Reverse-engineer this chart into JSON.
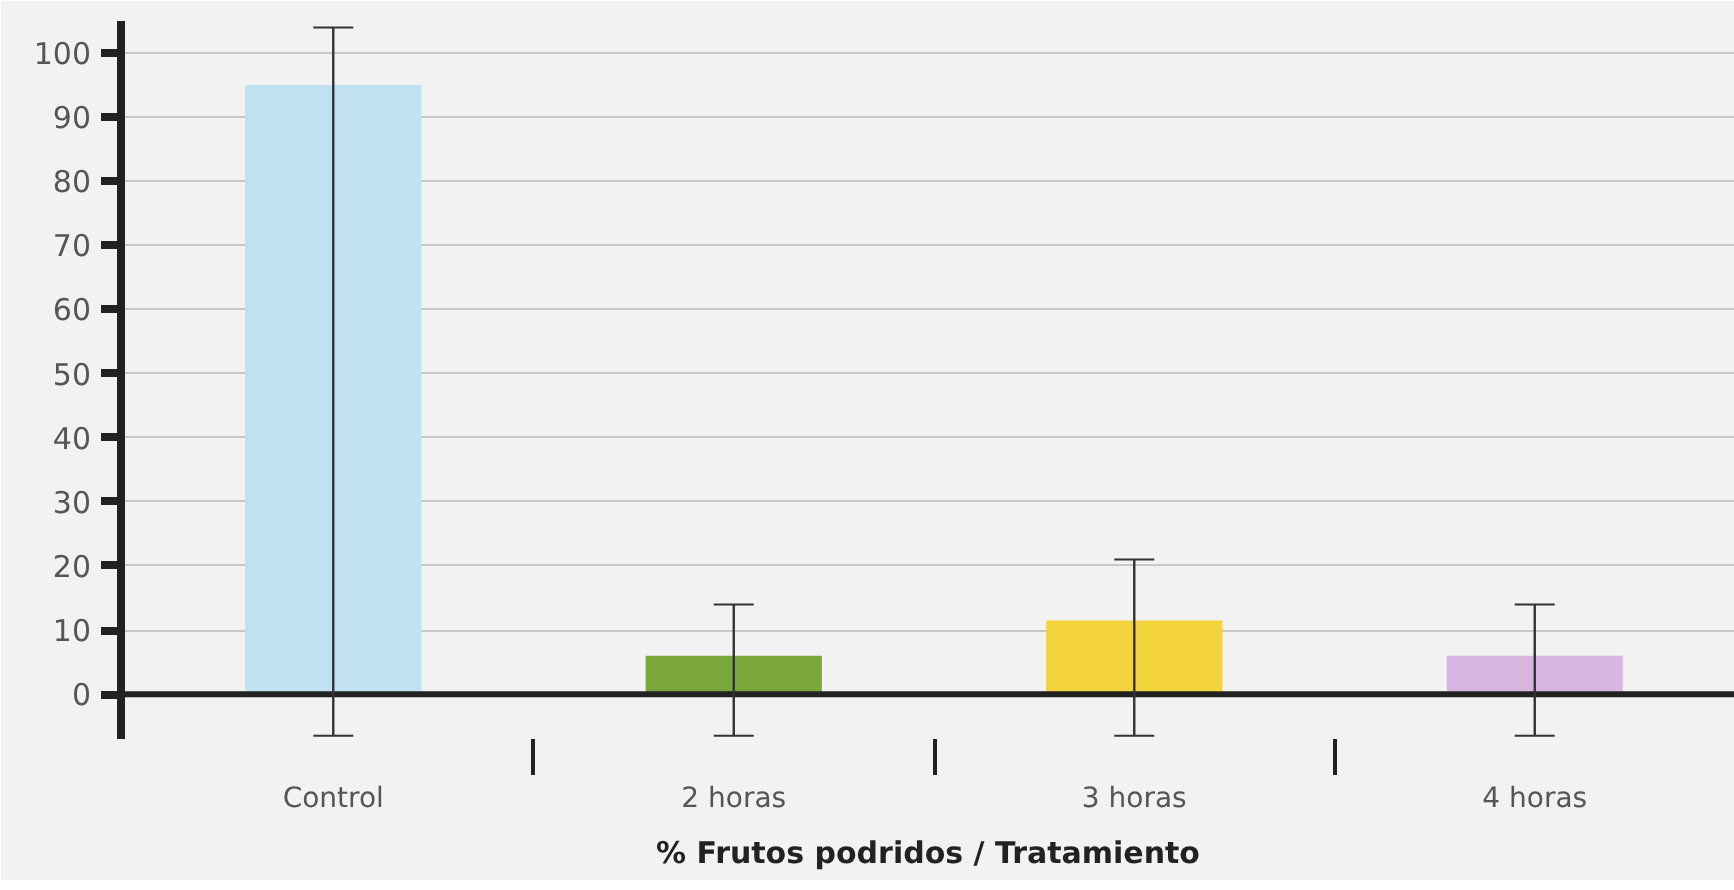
{
  "chart_data": {
    "type": "bar",
    "title": "% Frutos podridos / Tratamiento",
    "categories": [
      "Control",
      "2 horas",
      "3 horas",
      "4 horas"
    ],
    "values": [
      95,
      6,
      11.5,
      6
    ],
    "colors": [
      "#bfe1f2",
      "#7aa83a",
      "#f4d43c",
      "#d9b6e2"
    ],
    "errors": [
      [
        -6.5,
        104
      ],
      [
        -6.5,
        14
      ],
      [
        -6.5,
        21
      ],
      [
        -6.5,
        14
      ]
    ],
    "ylim": [
      -7,
      105
    ],
    "yticks": [
      0,
      10,
      20,
      30,
      40,
      50,
      60,
      70,
      80,
      90,
      100
    ],
    "grid": "y"
  }
}
